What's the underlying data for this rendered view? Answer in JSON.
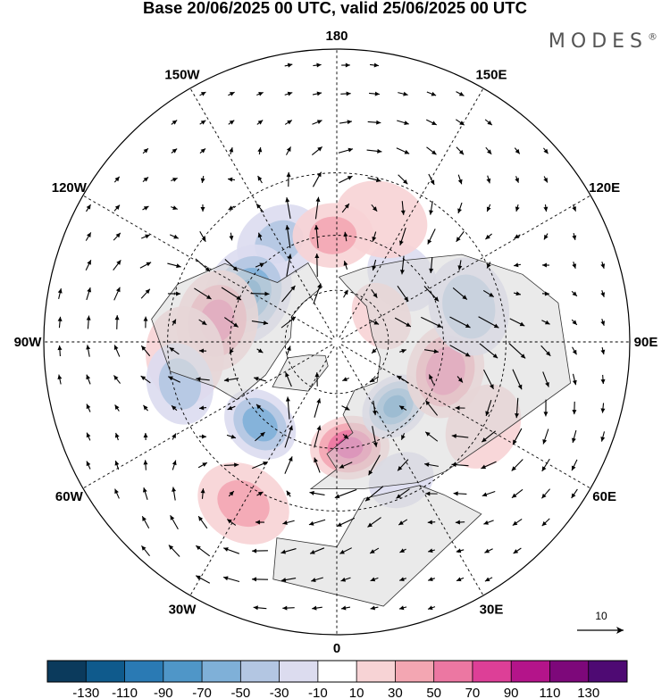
{
  "title": "Base 20/06/2025 00 UTC, valid 25/06/2025 00 UTC",
  "brand": "MODES",
  "brand_mark": "®",
  "longitude_labels": [
    {
      "text": "180",
      "lon": 180
    },
    {
      "text": "150E",
      "lon": 150
    },
    {
      "text": "120E",
      "lon": 120
    },
    {
      "text": "90E",
      "lon": 90
    },
    {
      "text": "60E",
      "lon": 60
    },
    {
      "text": "30E",
      "lon": 30
    },
    {
      "text": "0",
      "lon": 0
    },
    {
      "text": "30W",
      "lon": -30
    },
    {
      "text": "60W",
      "lon": -60
    },
    {
      "text": "90W",
      "lon": -90
    },
    {
      "text": "120W",
      "lon": -120
    },
    {
      "text": "150W",
      "lon": -150
    }
  ],
  "reference_vector": {
    "label": "10",
    "value": 10
  },
  "colorbar": {
    "tick_labels": [
      "-130",
      "-110",
      "-90",
      "-70",
      "-50",
      "-30",
      "-10",
      "10",
      "30",
      "50",
      "70",
      "90",
      "110",
      "130"
    ],
    "colors": [
      "#0b3a5c",
      "#0f5a8c",
      "#2a7ab4",
      "#4f96c8",
      "#7fb0d8",
      "#b3c6e2",
      "#dcdcef",
      "#ffffff",
      "#f7d3d5",
      "#f3a6b2",
      "#ec77a2",
      "#dd3f97",
      "#b4148a",
      "#7d087a",
      "#4e0a73"
    ]
  },
  "anomalies": [
    {
      "lon": -150,
      "lat": 47,
      "value": -40,
      "spread": 10
    },
    {
      "lon": -118,
      "lat": 52,
      "value": -75,
      "spread": 11
    },
    {
      "lon": -100,
      "lat": 45,
      "value": 60,
      "spread": 11
    },
    {
      "lon": -85,
      "lat": 35,
      "value": 30,
      "spread": 12
    },
    {
      "lon": -75,
      "lat": 32,
      "value": -45,
      "spread": 9
    },
    {
      "lon": -43,
      "lat": 48,
      "value": -65,
      "spread": 8
    },
    {
      "lon": -30,
      "lat": 25,
      "value": 40,
      "spread": 11
    },
    {
      "lon": 7,
      "lat": 50,
      "value": 75,
      "spread": 8
    },
    {
      "lon": 25,
      "lat": 35,
      "value": -25,
      "spread": 8
    },
    {
      "lon": 42,
      "lat": 57,
      "value": -75,
      "spread": 7
    },
    {
      "lon": 75,
      "lat": 48,
      "value": 70,
      "spread": 10
    },
    {
      "lon": 105,
      "lat": 40,
      "value": -50,
      "spread": 11
    },
    {
      "lon": 135,
      "lat": 55,
      "value": -30,
      "spread": 9
    },
    {
      "lon": 160,
      "lat": 42,
      "value": 25,
      "spread": 12
    },
    {
      "lon": -178,
      "lat": 50,
      "value": 40,
      "spread": 9
    },
    {
      "lon": 120,
      "lat": 70,
      "value": 15,
      "spread": 10
    },
    {
      "lon": 60,
      "lat": 30,
      "value": 20,
      "spread": 12
    }
  ]
}
